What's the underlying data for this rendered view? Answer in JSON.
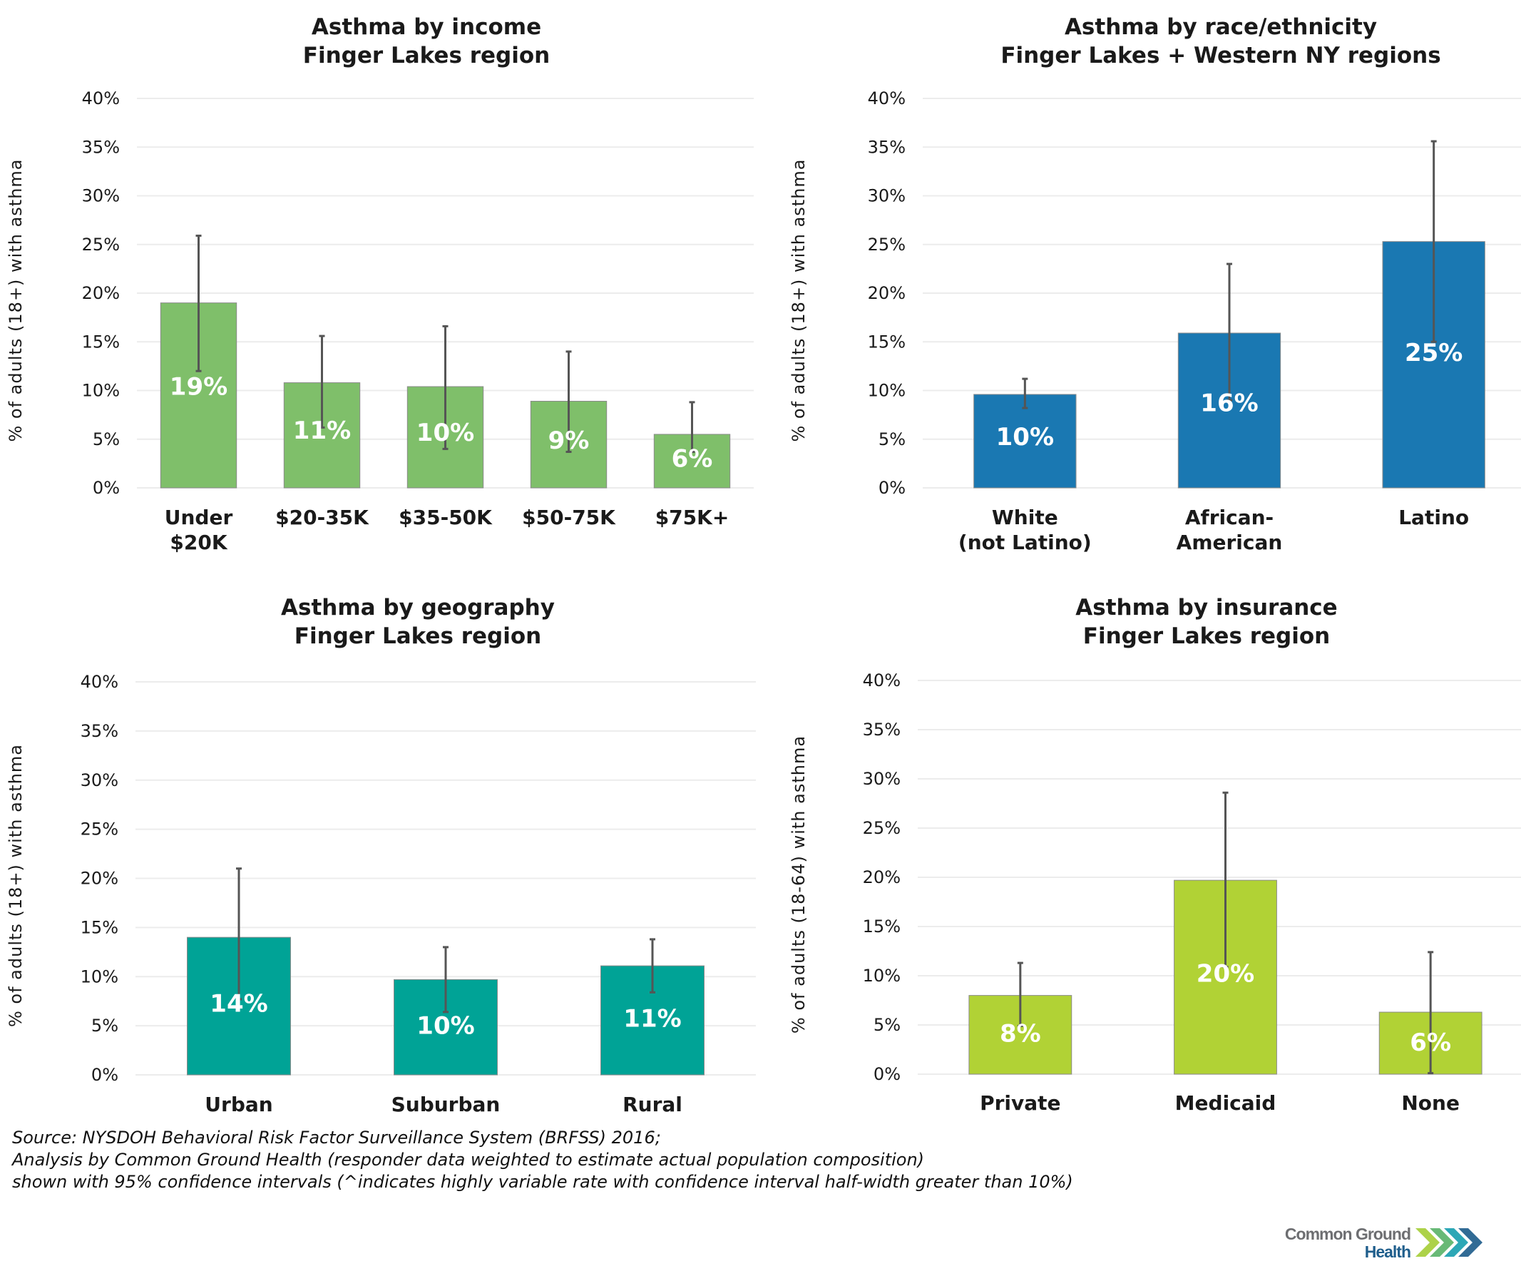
{
  "chart_data": [
    {
      "type": "bar",
      "title": [
        "Asthma by income",
        "Finger Lakes region"
      ],
      "xlabel": "",
      "ylabel": "% of adults (18+) with asthma",
      "ylim": [
        0,
        40
      ],
      "yticks": [
        "0%",
        "5%",
        "10%",
        "15%",
        "20%",
        "25%",
        "30%",
        "35%",
        "40%"
      ],
      "grid": true,
      "color": "#7fbf6a",
      "categories": [
        [
          "Under",
          "$20K"
        ],
        [
          "$20-35K"
        ],
        [
          "$35-50K"
        ],
        [
          "$50-75K"
        ],
        [
          "$75K+"
        ]
      ],
      "values": [
        19.0,
        10.8,
        10.4,
        8.9,
        5.5
      ],
      "data_labels": [
        "19%",
        "11%",
        "10%",
        "9%",
        "6%"
      ],
      "ci_low": [
        12.0,
        6.2,
        4.0,
        3.7,
        3.7
      ],
      "ci_high": [
        25.9,
        15.6,
        16.6,
        14.0,
        8.8
      ]
    },
    {
      "type": "bar",
      "title": [
        "Asthma by race/ethnicity",
        "Finger Lakes + Western NY regions"
      ],
      "xlabel": "",
      "ylabel": "% of adults (18+) with asthma",
      "ylim": [
        0,
        40
      ],
      "yticks": [
        "0%",
        "5%",
        "10%",
        "15%",
        "20%",
        "25%",
        "30%",
        "35%",
        "40%"
      ],
      "grid": true,
      "color": "#1a78b2",
      "categories": [
        [
          "White",
          "(not Latino)"
        ],
        [
          "African-",
          "American"
        ],
        [
          "Latino"
        ]
      ],
      "values": [
        9.6,
        15.9,
        25.3
      ],
      "data_labels": [
        "10%",
        "16%",
        "25%"
      ],
      "ci_low": [
        8.2,
        9.0,
        15.0
      ],
      "ci_high": [
        11.2,
        23.0,
        35.6
      ]
    },
    {
      "type": "bar",
      "title": [
        "Asthma by geography",
        "Finger Lakes region"
      ],
      "xlabel": "",
      "ylabel": "% of adults (18+) with asthma",
      "ylim": [
        0,
        40
      ],
      "yticks": [
        "0%",
        "5%",
        "10%",
        "15%",
        "20%",
        "25%",
        "30%",
        "35%",
        "40%"
      ],
      "grid": true,
      "color": "#00a396",
      "categories": [
        [
          "Urban"
        ],
        [
          "Suburban"
        ],
        [
          "Rural"
        ]
      ],
      "values": [
        14.0,
        9.7,
        11.1
      ],
      "data_labels": [
        "14%",
        "10%",
        "11%"
      ],
      "ci_low": [
        7.7,
        6.4,
        8.4
      ],
      "ci_high": [
        21.0,
        13.0,
        13.8
      ]
    },
    {
      "type": "bar",
      "title": [
        "Asthma by insurance",
        "Finger Lakes region"
      ],
      "xlabel": "",
      "ylabel": "% of adults (18-64) with asthma",
      "ylim": [
        0,
        40
      ],
      "yticks": [
        "0%",
        "5%",
        "10%",
        "15%",
        "20%",
        "25%",
        "30%",
        "35%",
        "40%"
      ],
      "grid": true,
      "color": "#b1d235",
      "categories": [
        [
          "Private"
        ],
        [
          "Medicaid"
        ],
        [
          "None"
        ]
      ],
      "values": [
        8.0,
        19.7,
        6.3
      ],
      "data_labels": [
        "8%",
        "20%",
        "6%"
      ],
      "ci_low": [
        4.9,
        10.9,
        0.1
      ],
      "ci_high": [
        11.3,
        28.6,
        12.4
      ]
    }
  ],
  "source": {
    "lines": [
      "Source: NYSDOH Behavioral Risk Factor Surveillance System (BRFSS) 2016;",
      "Analysis by Common Ground Health (responder data weighted to estimate actual population composition)",
      "shown with 95% confidence intervals (^indicates highly variable rate with confidence interval half-width greater than 10%)"
    ]
  },
  "logo": {
    "line1": "Common Ground",
    "line2": "Health",
    "icon": "chevrons-icon",
    "colors": [
      "#a6ce39",
      "#5bb36a",
      "#1a9fb0",
      "#1f5e8c"
    ]
  }
}
